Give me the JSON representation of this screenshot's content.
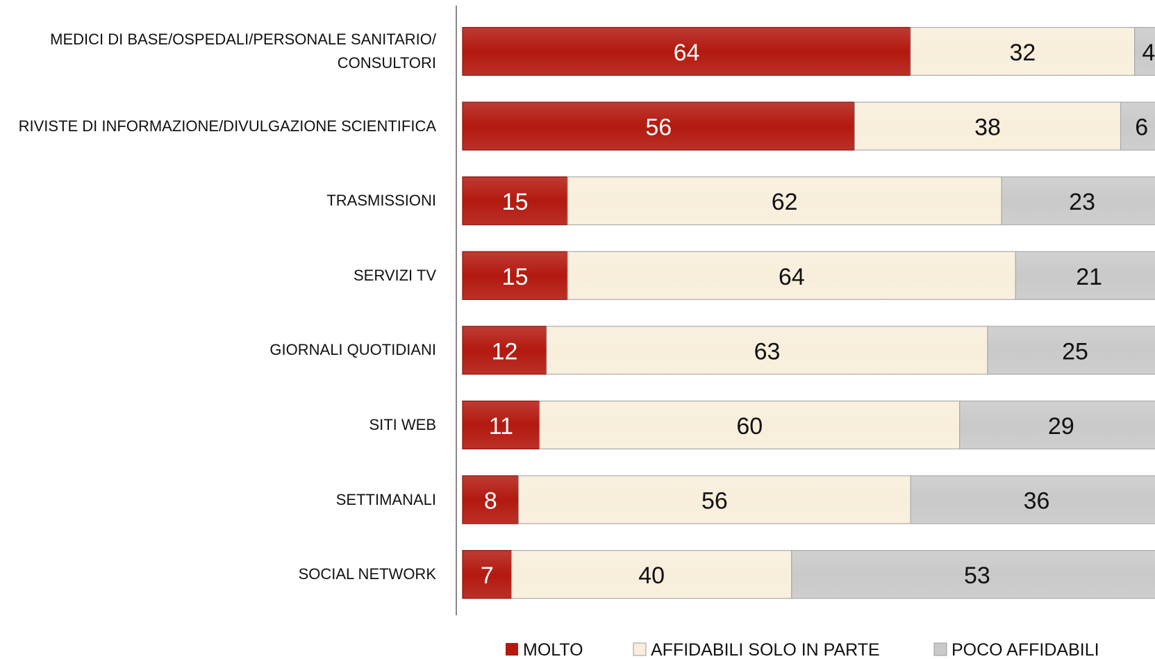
{
  "chart_data": {
    "type": "stacked_bar_horizontal",
    "categories": [
      "MEDICI DI BASE/OSPEDALI/PERSONALE SANITARIO/ CONSULTORI",
      "RIVISTE DI INFORMAZIONE/DIVULGAZIONE SCIENTIFICA",
      "TRASMISSIONI",
      "SERVIZI TV",
      "GIORNALI QUOTIDIANI",
      "SITI WEB",
      "SETTIMANALI",
      "SOCIAL NETWORK"
    ],
    "series": [
      {
        "name": "MOLTO",
        "color": "#b3190f",
        "values": [
          64,
          56,
          15,
          15,
          12,
          11,
          8,
          7
        ]
      },
      {
        "name": "AFFIDABILI SOLO IN PARTE",
        "color": "#f8eedb",
        "values": [
          32,
          38,
          62,
          64,
          63,
          60,
          56,
          40
        ]
      },
      {
        "name": "POCO AFFIDABILI",
        "color": "#c9c9c9",
        "values": [
          4,
          6,
          23,
          21,
          25,
          29,
          36,
          53
        ]
      }
    ],
    "xlim": [
      0,
      100
    ],
    "legend": "bottom"
  }
}
